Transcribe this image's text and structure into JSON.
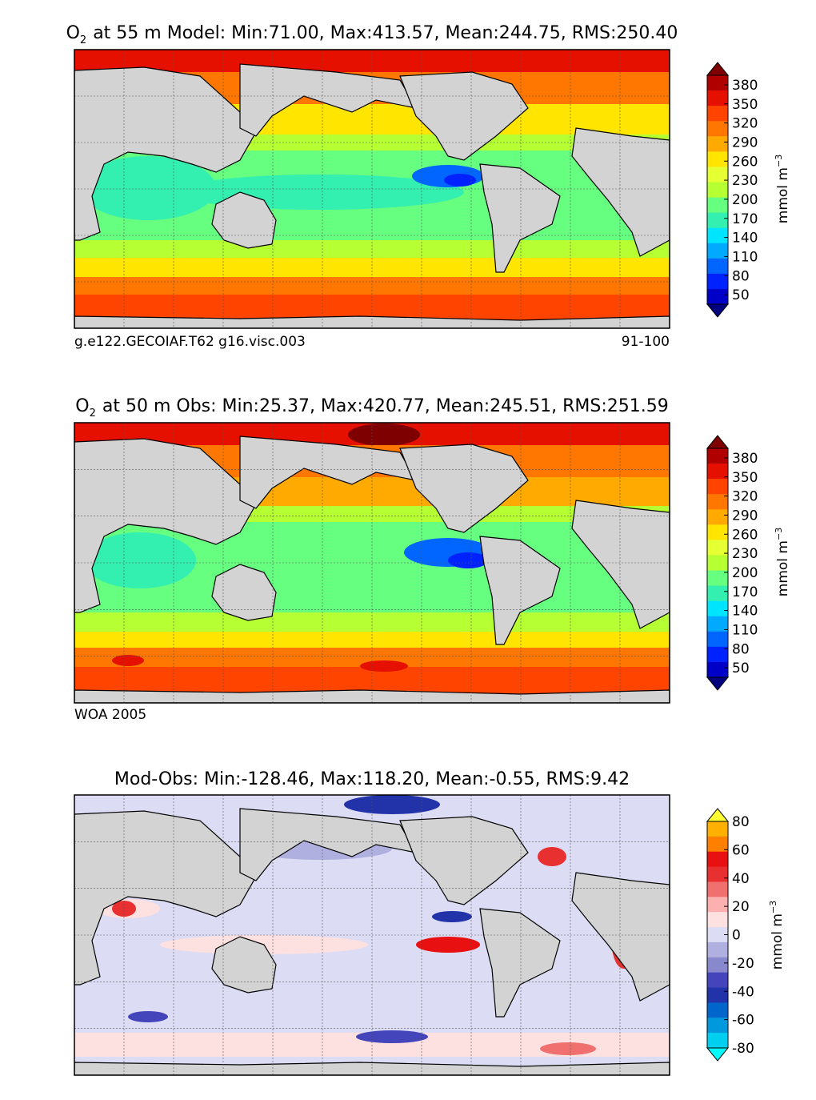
{
  "chart_data": [
    {
      "type": "heatmap",
      "title_species": "O",
      "title_subscript": "2",
      "title_rest": "at 55 m Model: Min:71.00, Max:413.57, Mean:244.75, RMS:250.40",
      "caption_left": "g.e122.GECOIAF.T62 g16.visc.003",
      "caption_right": "91-100",
      "colorbar": {
        "label": "mmol m",
        "label_exponent": "−3",
        "ticks": [
          "380",
          "350",
          "320",
          "290",
          "260",
          "230",
          "200",
          "170",
          "140",
          "110",
          "80",
          "50"
        ],
        "levels": [
          380,
          350,
          320,
          290,
          260,
          230,
          200,
          170,
          140,
          110,
          80,
          50
        ],
        "range": [
          35,
          395
        ],
        "extend": "both"
      },
      "stats": {
        "min": 71.0,
        "max": 413.57,
        "mean": 244.75,
        "rms": 250.4
      },
      "grid": "on"
    },
    {
      "type": "heatmap",
      "title_species": "O",
      "title_subscript": "2",
      "title_rest": "at 50 m Obs: Min:25.37, Max:420.77, Mean:245.51, RMS:251.59",
      "caption_left": "WOA 2005",
      "caption_right": "",
      "colorbar": {
        "label": "mmol m",
        "label_exponent": "−3",
        "ticks": [
          "380",
          "350",
          "320",
          "290",
          "260",
          "230",
          "200",
          "170",
          "140",
          "110",
          "80",
          "50"
        ],
        "levels": [
          380,
          350,
          320,
          290,
          260,
          230,
          200,
          170,
          140,
          110,
          80,
          50
        ],
        "range": [
          35,
          395
        ],
        "extend": "both"
      },
      "stats": {
        "min": 25.37,
        "max": 420.77,
        "mean": 245.51,
        "rms": 251.59
      },
      "grid": "on"
    },
    {
      "type": "heatmap",
      "title_species": "",
      "title_subscript": "",
      "title_rest": "Mod-Obs: Min:-128.46, Max:118.20, Mean:-0.55, RMS:9.42",
      "caption_left": "",
      "caption_right": "",
      "colorbar": {
        "label": "mmol m",
        "label_exponent": "−3",
        "ticks": [
          "80",
          "60",
          "40",
          "20",
          "0",
          "-20",
          "-40",
          "-60",
          "-80"
        ],
        "levels": [
          80,
          60,
          40,
          20,
          0,
          -20,
          -40,
          -60,
          -80
        ],
        "range": [
          -80,
          80
        ],
        "extend": "both"
      },
      "stats": {
        "min": -128.46,
        "max": 118.2,
        "mean": -0.55,
        "rms": 9.42
      },
      "grid": "on"
    }
  ],
  "colors": {
    "land": "#d3d3d3",
    "coast": "#000000",
    "grid": "#555555",
    "o2_scale": [
      "#00007f",
      "#0000c8",
      "#0022ff",
      "#0066ff",
      "#00aaff",
      "#00e5ff",
      "#33f0b0",
      "#66ff80",
      "#b6ff33",
      "#e6ff33",
      "#ffe500",
      "#ffaa00",
      "#ff7700",
      "#ff4400",
      "#e51000",
      "#b00000",
      "#7f0000"
    ],
    "diff_scale": [
      "#00ffff",
      "#00cfef",
      "#0099dd",
      "#0066cc",
      "#2233aa",
      "#4444bb",
      "#8888cc",
      "#b0b0e0",
      "#dcdcf5",
      "#fde0e0",
      "#fcb0b0",
      "#f07070",
      "#e83030",
      "#e81010",
      "#ff7f00",
      "#ffb000",
      "#ffff33"
    ]
  }
}
